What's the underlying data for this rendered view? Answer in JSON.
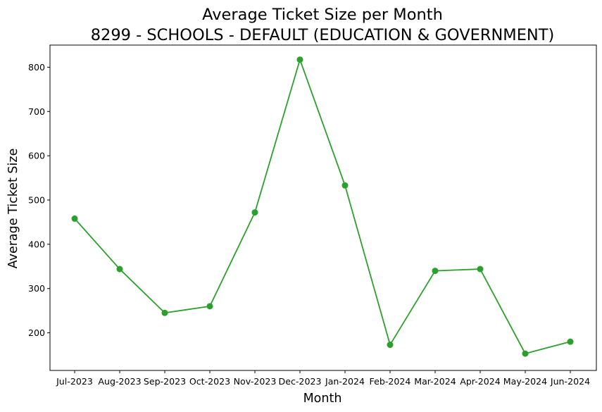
{
  "chart_data": {
    "type": "line",
    "title": "Average Ticket Size per Month",
    "subtitle": "8299 - SCHOOLS - DEFAULT (EDUCATION & GOVERNMENT)",
    "xlabel": "Month",
    "ylabel": "Average Ticket Size",
    "categories": [
      "Jul-2023",
      "Aug-2023",
      "Sep-2023",
      "Oct-2023",
      "Nov-2023",
      "Dec-2023",
      "Jan-2024",
      "Feb-2024",
      "Mar-2024",
      "Apr-2024",
      "May-2024",
      "Jun-2024"
    ],
    "series": [
      {
        "values": [
          458,
          344,
          245,
          260,
          472,
          817,
          533,
          173,
          340,
          344,
          153,
          180
        ],
        "color": "#2ca02c",
        "marker": "circle"
      }
    ],
    "ylim": [
      115,
      850
    ],
    "yticks": [
      200,
      300,
      400,
      500,
      600,
      700,
      800
    ],
    "grid": false,
    "legend": "none"
  }
}
